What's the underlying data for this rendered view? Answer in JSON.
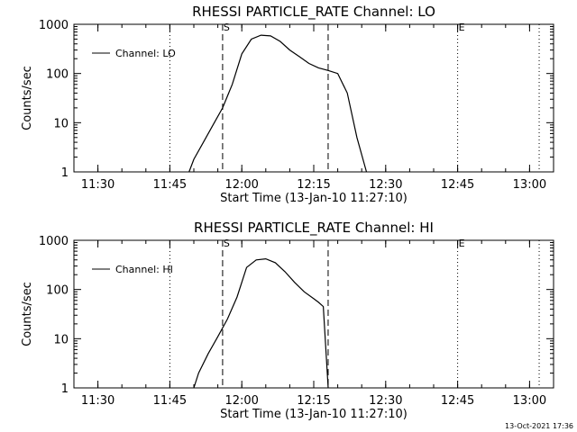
{
  "footer_stamp": "13-Oct-2021 17:36",
  "chart_data": [
    {
      "type": "line",
      "title": "RHESSI PARTICLE_RATE Channel: LO",
      "xlabel": "Start Time (13-Jan-10 11:27:10)",
      "ylabel": "Counts/sec",
      "yscale": "log",
      "ylim": [
        1,
        1000
      ],
      "xlim": [
        "11:25",
        "13:05"
      ],
      "x_ticks": [
        "11:30",
        "11:45",
        "12:00",
        "12:15",
        "12:30",
        "12:45",
        "13:00"
      ],
      "y_ticks": [
        "1",
        "10",
        "100",
        "1000"
      ],
      "legend": "top-left",
      "markers": {
        "dashed": [
          "11:56",
          "12:18"
        ],
        "dotted": [
          "11:45",
          "12:45",
          "13:02"
        ],
        "labels": [
          {
            "text": "S",
            "x": "11:56"
          },
          {
            "text": "E",
            "x": "12:45"
          }
        ]
      },
      "series": [
        {
          "name": "Channel: LO",
          "x": [
            "11:49",
            "11:50",
            "11:52",
            "11:54",
            "11:56",
            "11:58",
            "12:00",
            "12:02",
            "12:04",
            "12:06",
            "12:08",
            "12:10",
            "12:12",
            "12:14",
            "12:16",
            "12:18",
            "12:20",
            "12:22",
            "12:24",
            "12:26"
          ],
          "y": [
            1,
            1.8,
            4,
            9,
            20,
            60,
            250,
            500,
            600,
            580,
            450,
            300,
            220,
            160,
            130,
            115,
            100,
            40,
            5,
            1
          ]
        }
      ]
    },
    {
      "type": "line",
      "title": "RHESSI PARTICLE_RATE Channel: HI",
      "xlabel": "Start Time (13-Jan-10 11:27:10)",
      "ylabel": "Counts/sec",
      "yscale": "log",
      "ylim": [
        1,
        1000
      ],
      "xlim": [
        "11:25",
        "13:05"
      ],
      "x_ticks": [
        "11:30",
        "11:45",
        "12:00",
        "12:15",
        "12:30",
        "12:45",
        "13:00"
      ],
      "y_ticks": [
        "1",
        "10",
        "100",
        "1000"
      ],
      "legend": "top-left",
      "markers": {
        "dashed": [
          "11:56",
          "12:18"
        ],
        "dotted": [
          "11:45",
          "12:45",
          "13:02"
        ],
        "labels": [
          {
            "text": "S",
            "x": "11:56"
          },
          {
            "text": "E",
            "x": "12:45"
          }
        ]
      },
      "series": [
        {
          "name": "Channel: HI",
          "x": [
            "11:50",
            "11:51",
            "11:53",
            "11:55",
            "11:57",
            "11:59",
            "12:01",
            "12:03",
            "12:05",
            "12:07",
            "12:09",
            "12:11",
            "12:13",
            "12:15",
            "12:16",
            "12:17",
            "12:18"
          ],
          "y": [
            1,
            2,
            5,
            11,
            25,
            70,
            280,
            400,
            420,
            350,
            230,
            140,
            90,
            65,
            55,
            45,
            1
          ]
        }
      ]
    }
  ]
}
